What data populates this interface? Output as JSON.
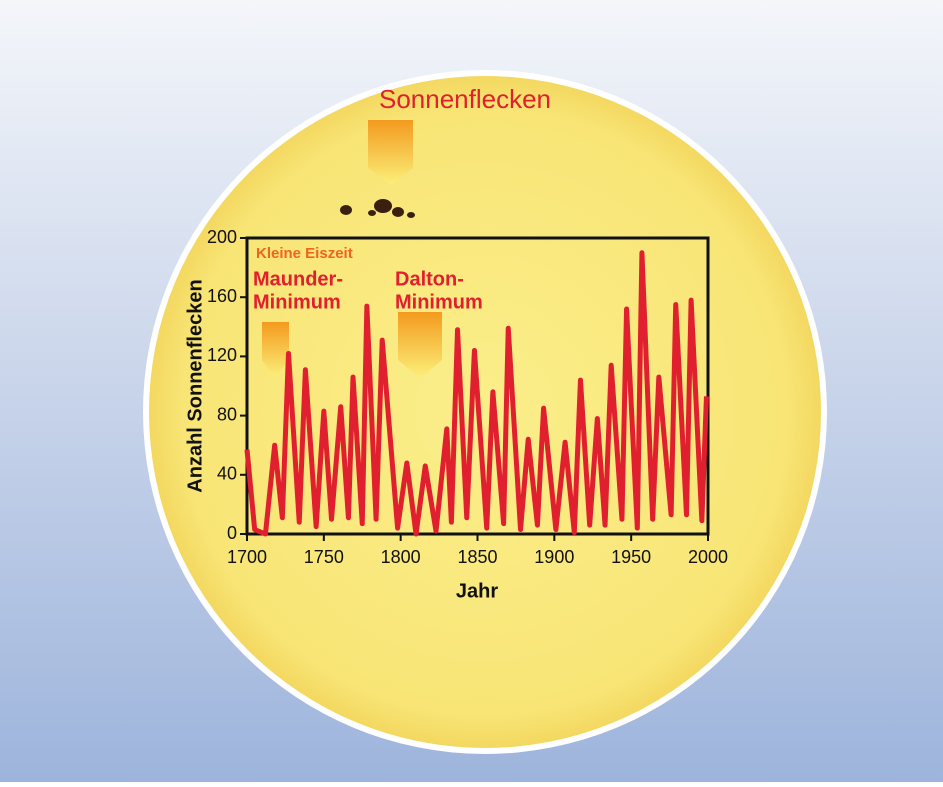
{
  "chart_data": {
    "type": "line",
    "annotations": [
      "Sonnenflecken",
      "Kleine Eiszeit",
      "Maunder-",
      "Minimum",
      "Dalton-",
      "Minimum"
    ],
    "xlabel": "Jahr",
    "ylabel": "Anzahl Sonnenflecken",
    "x": [
      1700,
      1705,
      1712,
      1718,
      1723,
      1727,
      1734,
      1738,
      1745,
      1750,
      1755,
      1761,
      1766,
      1769,
      1775,
      1778,
      1784,
      1788,
      1798,
      1804,
      1810,
      1816,
      1823,
      1830,
      1833,
      1837,
      1843,
      1848,
      1856,
      1860,
      1867,
      1870,
      1878,
      1883,
      1889,
      1893,
      1901,
      1907,
      1913,
      1917,
      1923,
      1928,
      1933,
      1937,
      1944,
      1947,
      1954,
      1957,
      1964,
      1968,
      1976,
      1979,
      1986,
      1989,
      1996,
      1999
    ],
    "values": [
      57,
      3,
      0,
      60,
      11,
      122,
      8,
      111,
      5,
      83,
      10,
      86,
      11,
      106,
      7,
      154,
      10,
      131,
      4,
      48,
      0,
      46,
      2,
      71,
      8,
      138,
      11,
      124,
      4,
      96,
      7,
      139,
      3,
      64,
      6,
      85,
      3,
      62,
      1,
      104,
      6,
      78,
      6,
      114,
      10,
      152,
      4,
      190,
      10,
      106,
      13,
      155,
      13,
      158,
      9,
      93
    ],
    "color": "#e0202e",
    "xlim": [
      1700,
      2000
    ],
    "xticks": [
      1700,
      1750,
      1800,
      1850,
      1900,
      1950,
      2000
    ],
    "ylim": [
      0,
      200
    ],
    "yticks": [
      0,
      40,
      80,
      120,
      160,
      200
    ]
  }
}
